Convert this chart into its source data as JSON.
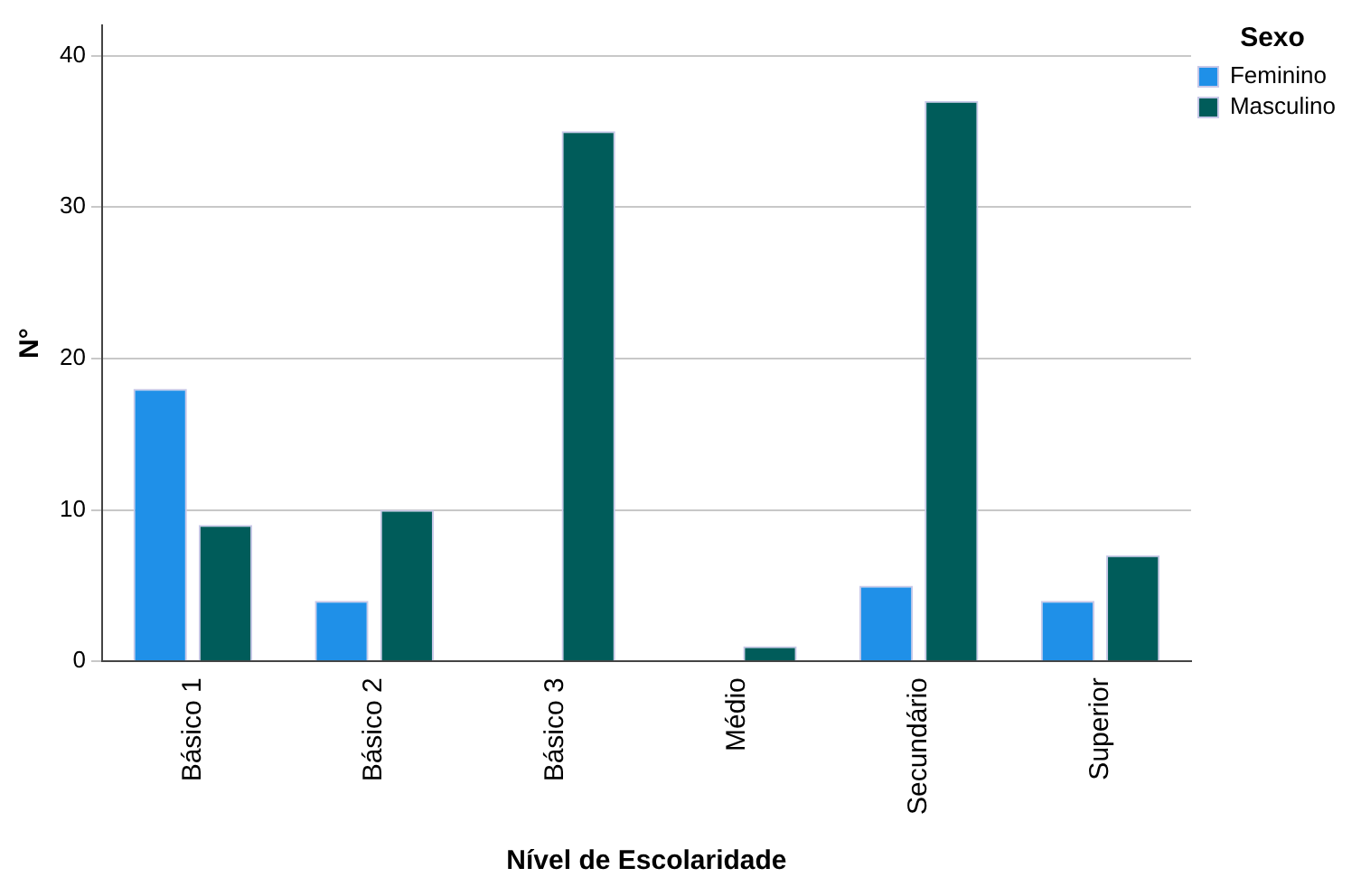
{
  "chart_data": {
    "type": "bar",
    "xlabel": "Nível de Escolaridade",
    "ylabel": "N°",
    "legend_title": "Sexo",
    "categories": [
      "Básico 1",
      "Básico 2",
      "Básico 3",
      "Médio",
      "Secundário",
      "Superior"
    ],
    "series": [
      {
        "name": "Feminino",
        "color": "#1f90e8",
        "values": [
          18,
          4,
          null,
          null,
          5,
          4
        ]
      },
      {
        "name": "Masculino",
        "color": "#005c5a",
        "values": [
          9,
          10,
          35,
          1,
          37,
          7
        ]
      }
    ],
    "ylim": [
      0,
      42
    ],
    "yticks": [
      0,
      10,
      20,
      30,
      40
    ],
    "grid": "y",
    "legend": "top right"
  }
}
